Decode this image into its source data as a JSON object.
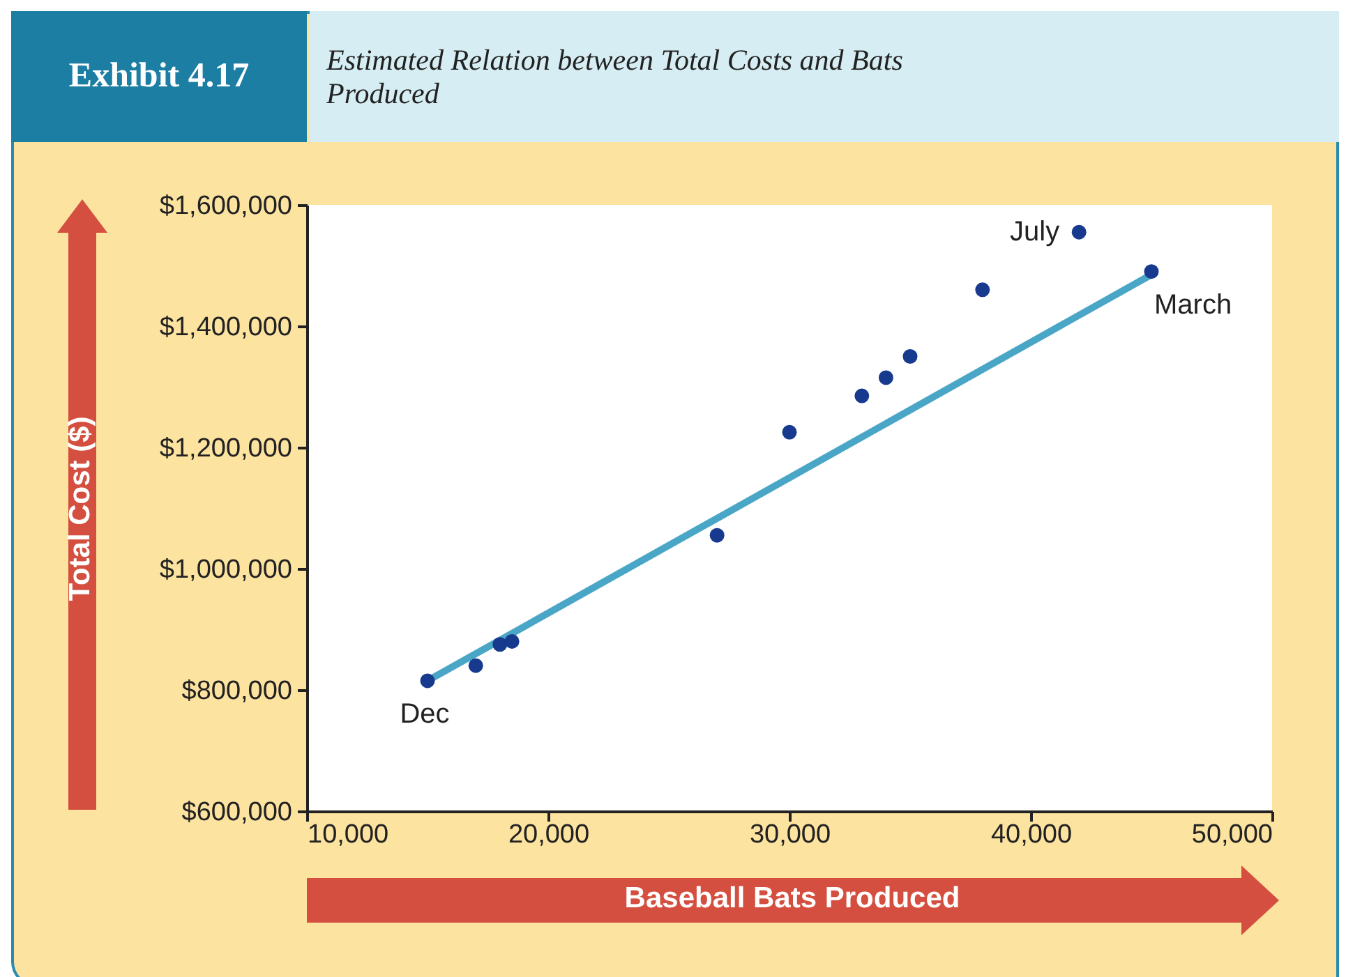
{
  "chart_data": {
    "type": "scatter",
    "title": "Exhibit 4.17",
    "subtitle": "Estimated Relation between Total Costs and Bats Produced",
    "xlabel": "Baseball Bats Produced",
    "ylabel": "Total Cost ($)",
    "series": [
      {
        "type": "scatter",
        "color": "#173a8e",
        "marker": "circle",
        "x": [
          15000,
          17000,
          18000,
          18500,
          27000,
          30000,
          33000,
          34000,
          35000,
          38000,
          42000,
          45000
        ],
        "values": [
          815000,
          840000,
          875000,
          880000,
          1055000,
          1225000,
          1285000,
          1315000,
          1350000,
          1460000,
          1555000,
          1490000
        ]
      },
      {
        "type": "line",
        "color": "#4aa6c6",
        "marker": "none",
        "line_style": "solid",
        "x": [
          15000,
          45000
        ],
        "values": [
          815000,
          1485000
        ]
      }
    ],
    "annotations": [
      {
        "text": "July",
        "x": 42000,
        "y": 1555000
      },
      {
        "text": "March",
        "x": 45000,
        "y": 1490000
      },
      {
        "text": "Dec",
        "x": 15000,
        "y": 815000
      }
    ],
    "xlim": [
      10000,
      50000
    ],
    "ylim": [
      600000,
      1600000
    ],
    "xticks": [
      {
        "value": 10000,
        "label": "10,000"
      },
      {
        "value": 20000,
        "label": "20,000"
      },
      {
        "value": 30000,
        "label": "30,000"
      },
      {
        "value": 40000,
        "label": "40,000"
      },
      {
        "value": 50000,
        "label": "50,000"
      }
    ],
    "yticks": [
      {
        "value": 600000,
        "label": "$600,000"
      },
      {
        "value": 800000,
        "label": "$800,000"
      },
      {
        "value": 1000000,
        "label": "$1,000,000"
      },
      {
        "value": 1200000,
        "label": "$1,200,000"
      },
      {
        "value": 1400000,
        "label": "$1,400,000"
      },
      {
        "value": 1600000,
        "label": "$1,600,000"
      }
    ],
    "grid": false
  }
}
